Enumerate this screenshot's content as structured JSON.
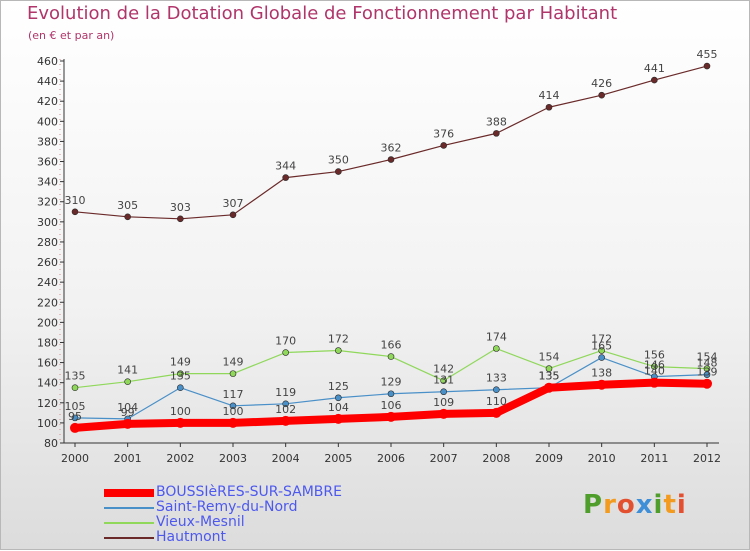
{
  "title": "Evolution de la Dotation Globale de Fonctionnement par Habitant",
  "subtitle": "(en € et par an)",
  "logo": {
    "text": "Proxiti",
    "colors": [
      "#4f9d2a",
      "#f39b1f",
      "#e3502f",
      "#3f8fd8"
    ]
  },
  "chart_data": {
    "type": "line",
    "title": "Evolution de la Dotation Globale de Fonctionnement par Habitant",
    "ylabel": "(en € et par an)",
    "xlabel": "",
    "ylim": [
      80,
      460
    ],
    "ytick_step": 20,
    "grid": false,
    "legend_position": "bottom-left",
    "categories": [
      "2000",
      "2001",
      "2002",
      "2003",
      "2004",
      "2005",
      "2006",
      "2007",
      "2008",
      "2009",
      "2010",
      "2011",
      "2012"
    ],
    "series": [
      {
        "name": "BOUSSIèRES-SUR-SAMBRE",
        "color": "#ff0000",
        "values": [
          95,
          99,
          100,
          100,
          102,
          104,
          106,
          109,
          110,
          135,
          138,
          140,
          139
        ]
      },
      {
        "name": "Saint-Remy-du-Nord",
        "color": "#4a90c8",
        "values": [
          105,
          104,
          135,
          117,
          119,
          125,
          129,
          131,
          133,
          135,
          165,
          146,
          148
        ]
      },
      {
        "name": "Vieux-Mesnil",
        "color": "#8fd85a",
        "values": [
          135,
          141,
          149,
          149,
          170,
          172,
          166,
          142,
          174,
          154,
          172,
          156,
          154
        ]
      },
      {
        "name": "Hautmont",
        "color": "#6b2a2a",
        "values": [
          310,
          305,
          303,
          307,
          344,
          350,
          362,
          376,
          388,
          414,
          426,
          441,
          455
        ]
      }
    ]
  }
}
